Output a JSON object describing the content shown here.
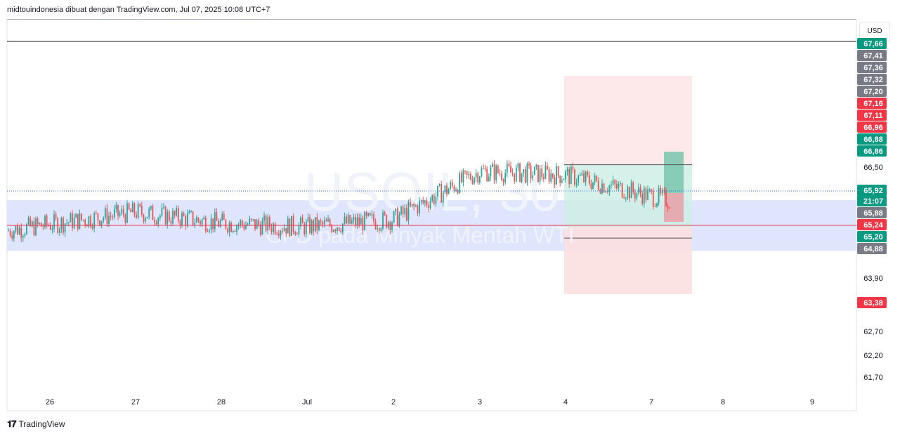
{
  "header": {
    "attribution": "midtouindonesia dibuat dengan TradingView.com, Jul 07, 2025 10:08 UTC+7"
  },
  "currency_button": "USD",
  "footer": {
    "brand": "TradingView",
    "logo_icon": "tradingview-logo-icon"
  },
  "watermark": {
    "symbol": "USOIL, 30",
    "description": "CFD pada Minyak Mentah WTI"
  },
  "colors": {
    "up": "#26a69a",
    "down": "#ef5350",
    "zone": "#d9e1fd",
    "target": "#e8f5f1",
    "stop": "#fbdfe0",
    "red_line": "#f23645",
    "gray_tag": "#787b86",
    "green_tag": "#089981",
    "red_tag": "#f23645"
  },
  "chart_data": {
    "type": "candlestick",
    "y_axis_labels": [
      {
        "text": "67,66",
        "value": 67.66,
        "style": "green"
      },
      {
        "text": "67,41",
        "value": 67.41,
        "style": "gray"
      },
      {
        "text": "67,36",
        "value": 67.36,
        "style": "gray"
      },
      {
        "text": "67,32",
        "value": 67.32,
        "style": "gray"
      },
      {
        "text": "67,20",
        "value": 67.2,
        "style": "gray"
      },
      {
        "text": "67,16",
        "value": 67.16,
        "style": "red"
      },
      {
        "text": "67,11",
        "value": 67.11,
        "style": "red"
      },
      {
        "text": "66,96",
        "value": 66.96,
        "style": "red"
      },
      {
        "text": "66,88",
        "value": 66.88,
        "style": "green"
      },
      {
        "text": "66,86",
        "value": 66.86,
        "style": "green"
      },
      {
        "text": "66,50",
        "value": 66.5,
        "style": "plain"
      },
      {
        "text": "65,92",
        "value": 65.92,
        "style": "green"
      },
      {
        "text": "21:07",
        "value": 65.92,
        "style": "green-countdown"
      },
      {
        "text": "65,88",
        "value": 65.88,
        "style": "gray"
      },
      {
        "text": "65,24",
        "value": 65.24,
        "style": "red"
      },
      {
        "text": "65,20",
        "value": 65.2,
        "style": "green"
      },
      {
        "text": "64,88",
        "value": 64.88,
        "style": "gray"
      },
      {
        "text": "63,90",
        "value": 63.9,
        "style": "plain"
      },
      {
        "text": "63,38",
        "value": 63.38,
        "style": "red"
      },
      {
        "text": "62,70",
        "value": 62.7,
        "style": "plain"
      },
      {
        "text": "62,20",
        "value": 62.2,
        "style": "plain"
      },
      {
        "text": "61,70",
        "value": 61.7,
        "style": "plain"
      }
    ],
    "x_axis_labels": [
      "26",
      "27",
      "28",
      "Jul",
      "2",
      "3",
      "4",
      "7",
      "8",
      "9"
    ],
    "current_price": 65.92,
    "horizontal_levels": {
      "top_black_line": 67.66,
      "red_line": 65.24
    },
    "support_zone": {
      "from": 64.55,
      "to": 65.92
    },
    "position": {
      "entry": 65.2,
      "target": 66.88,
      "stop": 63.38
    },
    "price_path": [
      {
        "date": "26",
        "close": 65.1
      },
      {
        "date": "27",
        "close": 65.6
      },
      {
        "date": "28",
        "close": 65.3
      },
      {
        "date": "Jul",
        "close": 65.2
      },
      {
        "date": "2",
        "close": 65.4
      },
      {
        "date": "3",
        "close": 66.7
      },
      {
        "date": "4",
        "close": 66.6
      },
      {
        "date": "7",
        "close": 65.9
      }
    ]
  }
}
